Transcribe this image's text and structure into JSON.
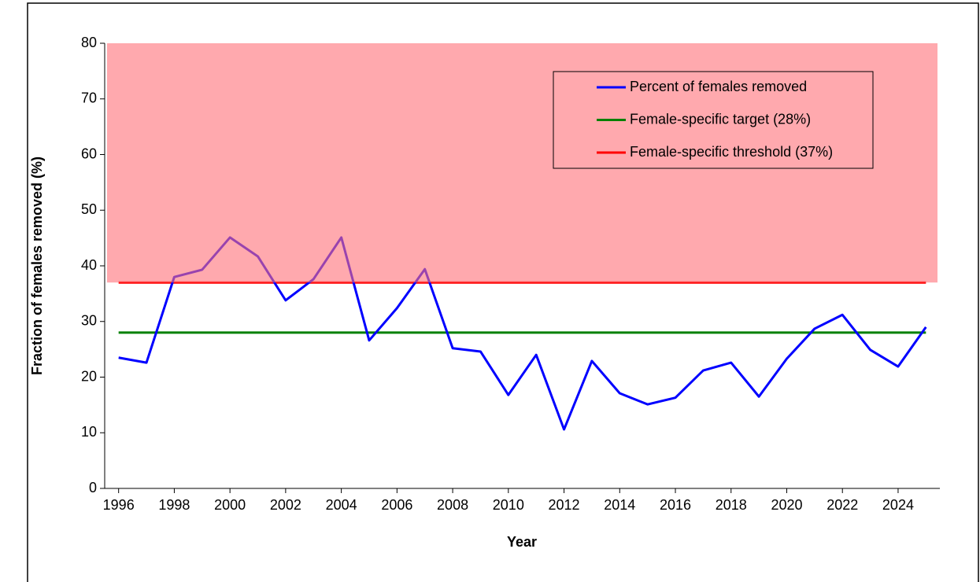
{
  "chart_data": {
    "type": "line",
    "x_label": "Year",
    "y_label": "Fraction of females removed (%)",
    "x": [
      1996,
      1997,
      1998,
      1999,
      2000,
      2001,
      2002,
      2003,
      2004,
      2005,
      2006,
      2007,
      2008,
      2009,
      2010,
      2011,
      2012,
      2013,
      2014,
      2015,
      2016,
      2017,
      2018,
      2019,
      2020,
      2021,
      2022,
      2023,
      2024,
      2025
    ],
    "series": [
      {
        "name": "Percent of females removed",
        "color": "#0000ff",
        "values": [
          23.5,
          22.6,
          38.0,
          39.3,
          45.1,
          41.7,
          33.8,
          37.6,
          45.1,
          26.6,
          32.4,
          39.4,
          25.2,
          24.6,
          16.8,
          24.0,
          10.6,
          22.9,
          17.1,
          15.1,
          16.3,
          21.2,
          22.6,
          16.5,
          23.3,
          28.7,
          31.2,
          24.9,
          21.9,
          29.0
        ]
      }
    ],
    "reference_lines": [
      {
        "name": "Female-specific target (28%)",
        "color": "#008000",
        "value": 28
      },
      {
        "name": "Female-specific threshold (37%)",
        "color": "#ff0000",
        "value": 37
      }
    ],
    "shaded_region": {
      "ylim": [
        37,
        80
      ],
      "color": "#ff6f78"
    },
    "xlim": [
      1995.5,
      2025.5
    ],
    "xticks": [
      1996,
      1998,
      2000,
      2002,
      2004,
      2006,
      2008,
      2010,
      2012,
      2014,
      2016,
      2018,
      2020,
      2022,
      2024
    ],
    "ylim": [
      0,
      80
    ],
    "yticks": [
      0,
      10,
      20,
      30,
      40,
      50,
      60,
      70,
      80
    ],
    "legend_position": "upper right"
  }
}
